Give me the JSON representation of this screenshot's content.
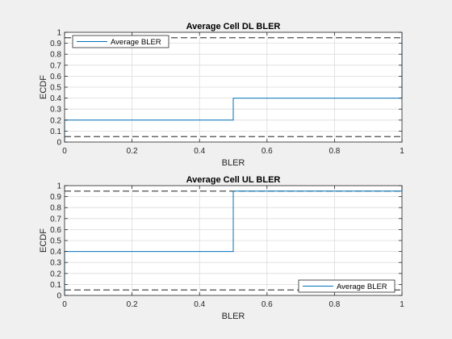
{
  "chart_data": [
    {
      "type": "line",
      "title": "Average Cell DL BLER",
      "xlabel": "BLER",
      "ylabel": "ECDF",
      "xlim": [
        0,
        1
      ],
      "ylim": [
        0,
        1
      ],
      "xticks": [
        "0",
        "0.2",
        "0.4",
        "0.6",
        "0.8",
        "1"
      ],
      "yticks": [
        "0",
        "0.1",
        "0.2",
        "0.3",
        "0.4",
        "0.5",
        "0.6",
        "0.7",
        "0.8",
        "0.9",
        "1"
      ],
      "grid": true,
      "legend_position": "top-left",
      "series": [
        {
          "name": "Average BLER",
          "color": "#0072BD",
          "step": true,
          "points": [
            [
              0,
              0
            ],
            [
              0,
              0.2
            ],
            [
              0.5,
              0.2
            ],
            [
              0.5,
              0.4
            ],
            [
              1,
              0.4
            ],
            [
              1,
              1
            ]
          ]
        }
      ],
      "reference_lines": [
        {
          "y": 0.05,
          "style": "dashed",
          "color": "#000000"
        },
        {
          "y": 0.95,
          "style": "dashed",
          "color": "#000000"
        }
      ]
    },
    {
      "type": "line",
      "title": "Average Cell UL BLER",
      "xlabel": "BLER",
      "ylabel": "ECDF",
      "xlim": [
        0,
        1
      ],
      "ylim": [
        0,
        1
      ],
      "xticks": [
        "0",
        "0.2",
        "0.4",
        "0.6",
        "0.8",
        "1"
      ],
      "yticks": [
        "0",
        "0.1",
        "0.2",
        "0.3",
        "0.4",
        "0.5",
        "0.6",
        "0.7",
        "0.8",
        "0.9",
        "1"
      ],
      "grid": true,
      "legend_position": "bottom-right",
      "series": [
        {
          "name": "Average BLER",
          "color": "#0072BD",
          "step": true,
          "points": [
            [
              0,
              0
            ],
            [
              0,
              0.4
            ],
            [
              0.5,
              0.4
            ],
            [
              0.5,
              0.95
            ],
            [
              1,
              0.95
            ],
            [
              1,
              1
            ]
          ]
        }
      ],
      "reference_lines": [
        {
          "y": 0.05,
          "style": "dashed",
          "color": "#000000"
        },
        {
          "y": 0.95,
          "style": "dashed",
          "color": "#000000"
        }
      ]
    }
  ]
}
